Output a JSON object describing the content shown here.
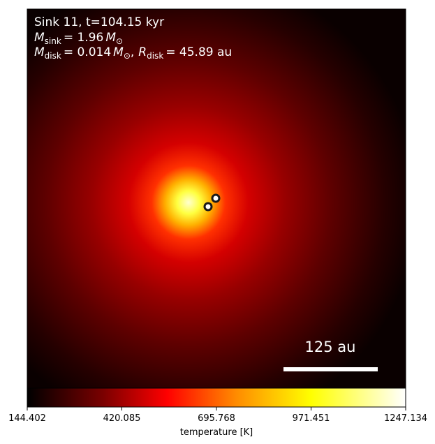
{
  "panel": {
    "title": "Sink 11, t=104.15 kyr",
    "sink_mass": {
      "symbol": "M",
      "subscript": "sink",
      "value": "= 1.96",
      "unit_symbol": "M",
      "unit_subscript": "⊙"
    },
    "disk_props": {
      "mass_symbol": "M",
      "mass_subscript": "disk",
      "mass_value": "= 0.014",
      "mass_unit": "M",
      "mass_unit_sub": "⊙",
      "separator": ",",
      "radius_symbol": "R",
      "radius_subscript": "disk",
      "radius_value": "= 45.89 au"
    },
    "scale_bar_label": "125 au",
    "sinks_count": 2
  },
  "colorbar": {
    "label": "temperature [K]",
    "ticks": [
      "144.402",
      "420.085",
      "695.768",
      "971.451",
      "1247.134"
    ],
    "min": 144.402,
    "max": 1247.134,
    "colormap": "hot",
    "colors": [
      "#000000",
      "#7a0000",
      "#ff0000",
      "#ff8a00",
      "#ffff00",
      "#ffffff"
    ]
  }
}
